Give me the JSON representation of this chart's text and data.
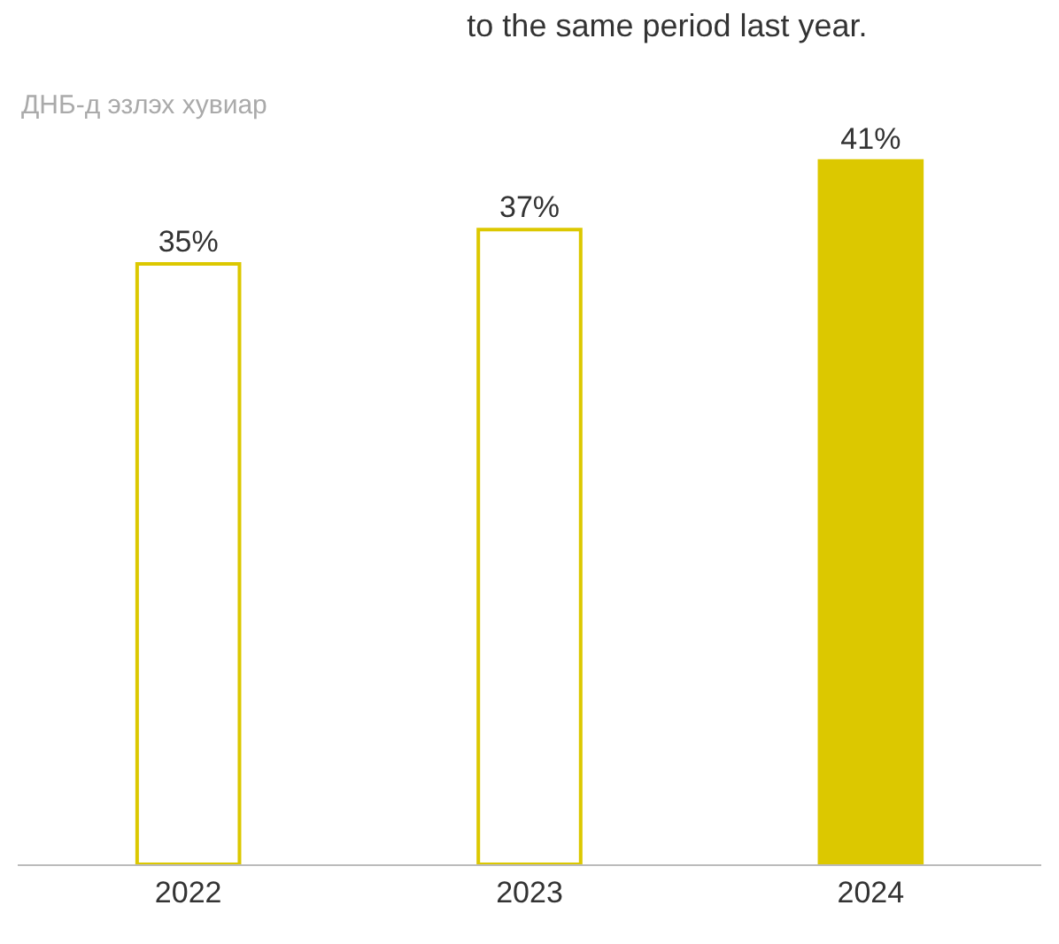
{
  "chart_data": {
    "type": "bar",
    "title": "to the same period last year.",
    "subtitle": "ДНБ-д эзлэх хувиар",
    "categories": [
      "2022",
      "2023",
      "2024"
    ],
    "series": [
      {
        "color": "#dcc800",
        "colors": [
          "#ffffff",
          "#ffffff",
          "#dcc800"
        ],
        "values": [
          35,
          37,
          41
        ],
        "value_labels": [
          "35%",
          "37%",
          "41%"
        ]
      }
    ],
    "tick_labels": "x",
    "legend": false
  }
}
